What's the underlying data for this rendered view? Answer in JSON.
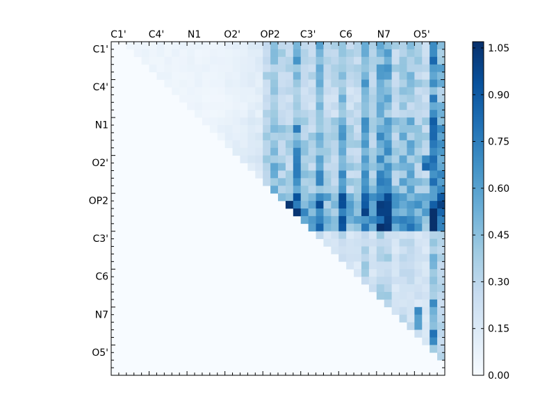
{
  "chart_data": {
    "type": "heatmap",
    "title": "",
    "xlabel": "",
    "ylabel": "",
    "x_tick_labels": [
      "C1'",
      "C4'",
      "N1",
      "O2'",
      "OP2",
      "C3'",
      "C6",
      "N7",
      "O5'"
    ],
    "y_tick_labels": [
      "C1'",
      "C4'",
      "N1",
      "O2'",
      "OP2",
      "C3'",
      "C6",
      "N7",
      "O5'"
    ],
    "tick_every": 5,
    "grid_size": 44,
    "value_range": [
      0.0,
      1.07
    ],
    "colormap": "Blues",
    "colormap_stops": [
      "#f7fbff",
      "#deebf7",
      "#c6dbef",
      "#9ecae1",
      "#6baed6",
      "#4292c6",
      "#2171b5",
      "#08519c",
      "#08306b"
    ],
    "colorbar": {
      "ticks": [
        0.0,
        0.15,
        0.3,
        0.45,
        0.6,
        0.75,
        0.9,
        1.05
      ],
      "tick_labels": [
        "0.00",
        "0.15",
        "0.30",
        "0.45",
        "0.60",
        "0.75",
        "0.90",
        "1.05"
      ]
    },
    "grid": false,
    "matrix_shape": "upper-triangular",
    "row_profile": [
      0.12,
      0.12,
      0.12,
      0.12,
      0.12,
      0.12,
      0.1,
      0.1,
      0.1,
      0.1,
      0.15,
      0.15,
      0.15,
      0.15,
      0.16,
      0.18,
      0.18,
      0.18,
      0.2,
      0.2,
      0.28,
      0.28,
      0.28,
      0.28,
      0.28,
      0.06,
      0.06,
      0.06,
      0.06,
      0.06,
      0.06,
      0.06,
      0.06,
      0.06,
      0.06,
      0.06,
      0.06,
      0.06,
      0.06,
      0.06,
      0.06,
      0.06,
      0.06,
      0.06
    ],
    "row_gain": [
      0.8,
      0.8,
      0.8,
      0.8,
      0.8,
      0.8,
      0.7,
      0.7,
      0.7,
      0.7,
      0.9,
      0.9,
      0.9,
      0.9,
      0.9,
      0.9,
      0.9,
      0.9,
      0.9,
      0.9,
      1.3,
      1.3,
      1.3,
      1.3,
      1.3,
      0.5,
      0.5,
      0.5,
      0.5,
      0.5,
      0.5,
      0.5,
      0.5,
      0.5,
      0.5,
      0.5,
      0.5,
      0.5,
      0.5,
      0.5,
      0.5,
      0.5,
      0.5,
      0.5
    ],
    "col_profile": [
      0.0,
      0.02,
      0.02,
      0.02,
      0.02,
      0.02,
      0.02,
      0.02,
      0.02,
      0.02,
      0.02,
      0.02,
      0.02,
      0.02,
      0.02,
      0.05,
      0.05,
      0.05,
      0.1,
      0.1,
      0.35,
      0.45,
      0.35,
      0.3,
      0.6,
      0.35,
      0.3,
      0.55,
      0.3,
      0.3,
      0.55,
      0.3,
      0.3,
      0.6,
      0.35,
      0.6,
      0.6,
      0.35,
      0.45,
      0.45,
      0.35,
      0.3,
      0.8,
      0.55
    ],
    "hotspots": [
      [
        21,
        23,
        1.05
      ],
      [
        21,
        30,
        0.95
      ],
      [
        21,
        33,
        0.9
      ],
      [
        21,
        35,
        1.02
      ],
      [
        21,
        36,
        1.0
      ],
      [
        22,
        23,
        1.0
      ],
      [
        22,
        33,
        1.0
      ],
      [
        22,
        35,
        1.0
      ],
      [
        22,
        36,
        1.0
      ],
      [
        16,
        41,
        0.85
      ],
      [
        15,
        41,
        0.7
      ],
      [
        19,
        42,
        0.6
      ],
      [
        20,
        42,
        0.6
      ],
      [
        34,
        42,
        0.7
      ],
      [
        38,
        42,
        0.8
      ],
      [
        39,
        42,
        0.7
      ],
      [
        35,
        40,
        0.7
      ],
      [
        36,
        40,
        0.6
      ],
      [
        37,
        40,
        0.6
      ]
    ]
  }
}
